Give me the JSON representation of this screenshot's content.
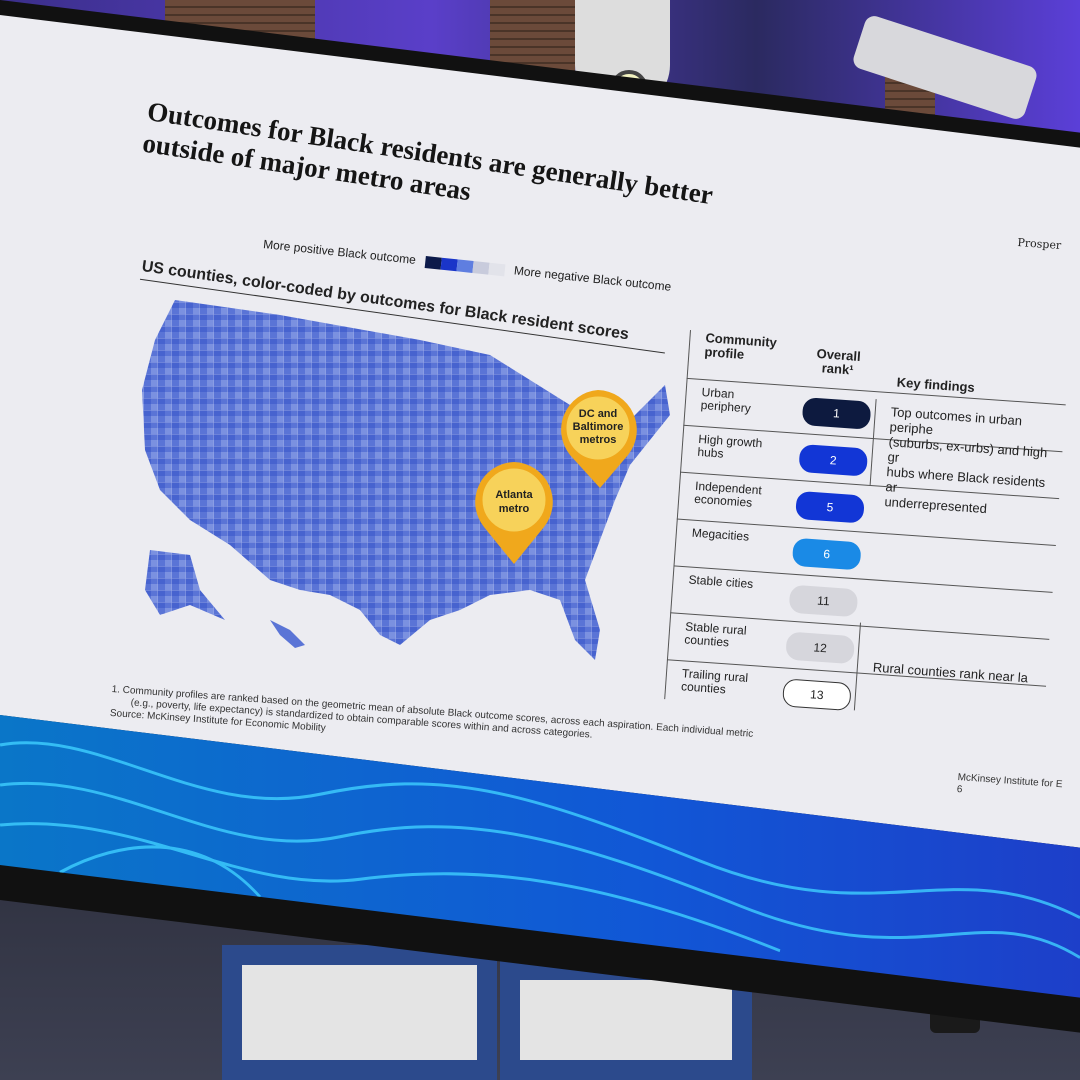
{
  "slide": {
    "title_line1": "Outcomes for Black residents are generally better",
    "title_line2": "outside of major metro areas",
    "corner_label": "Prosper",
    "legend": {
      "positive_label": "More positive Black outcome",
      "negative_label": "More negative Black outcome",
      "colors": [
        "#0c1a4a",
        "#1a35c9",
        "#5f7ee0",
        "#c8cbdc",
        "#e2e3ea"
      ]
    },
    "map": {
      "subtitle": "US counties, color-coded by outcomes for Black resident scores",
      "pins": [
        {
          "label_line1": "DC and",
          "label_line2": "Baltimore",
          "label_line3": "metros"
        },
        {
          "label_line1": "Atlanta",
          "label_line2": "metro"
        }
      ],
      "pin_color": "#f0a81c",
      "fill_color": "#5a74d6"
    },
    "table": {
      "headers": {
        "profile_line1": "Community",
        "profile_line2": "profile",
        "rank_line1": "Overall",
        "rank_line2": "rank¹",
        "findings": "Key findings"
      },
      "rows": [
        {
          "profile_line1": "Urban",
          "profile_line2": "periphery",
          "rank": "1",
          "color": "#0d1a3f",
          "text_color": "#ffffff"
        },
        {
          "profile_line1": "High growth",
          "profile_line2": "hubs",
          "rank": "2",
          "color": "#1236d6",
          "text_color": "#ffffff"
        },
        {
          "profile_line1": "Independent",
          "profile_line2": "economies",
          "rank": "5",
          "color": "#1236d6",
          "text_color": "#ffffff"
        },
        {
          "profile_line1": "Megacities",
          "profile_line2": "",
          "rank": "6",
          "color": "#1a8ae6",
          "text_color": "#ffffff"
        },
        {
          "profile_line1": "Stable cities",
          "profile_line2": "",
          "rank": "11",
          "color": "#d6d6dc",
          "text_color": "#222222"
        },
        {
          "profile_line1": "Stable rural",
          "profile_line2": "counties",
          "rank": "12",
          "color": "#d6d6dc",
          "text_color": "#222222"
        },
        {
          "profile_line1": "Trailing rural",
          "profile_line2": "counties",
          "rank": "13",
          "color": "#ffffff",
          "text_color": "#222222"
        }
      ],
      "findings": [
        {
          "line1": "Top outcomes in urban periphe",
          "line2": "(suburbs, ex-urbs) and high gr",
          "line3": "hubs where Black residents ar",
          "line4": "underrepresented"
        },
        {
          "line1": "Rural counties rank near la"
        }
      ]
    },
    "footnote_line1": "1.  Community profiles are ranked based on the geometric mean of absolute Black outcome scores, across each aspiration. Each individual metric",
    "footnote_line2": "(e.g., poverty, life expectancy) is standardized to obtain comparable scores within and across categories.",
    "source": "Source: McKinsey Institute for Economic Mobility",
    "footer_org": "McKinsey Institute for E",
    "page_number": "6"
  }
}
